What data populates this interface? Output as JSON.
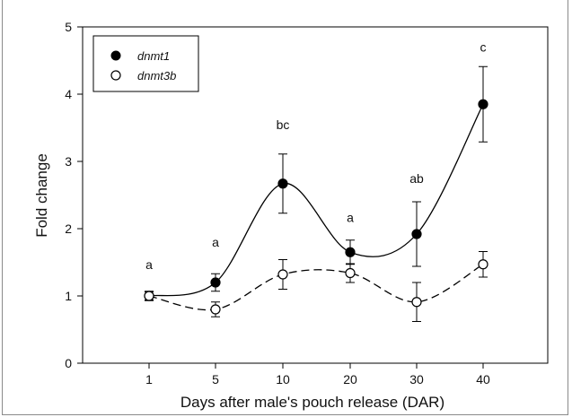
{
  "chart_data": {
    "type": "line",
    "title": "",
    "xlabel": "Days after male's pouch release (DAR)",
    "ylabel": "Fold change",
    "categories": [
      "1",
      "5",
      "10",
      "20",
      "30",
      "40"
    ],
    "ylim": [
      0,
      5
    ],
    "yticks": [
      "0",
      "1",
      "2",
      "3",
      "4",
      "5"
    ],
    "grid": false,
    "legend_position": "top-left",
    "series": [
      {
        "name": "dnmt1",
        "marker": "filled-circle",
        "line_style": "solid",
        "color": "#000000",
        "values": [
          1.0,
          1.2,
          2.67,
          1.65,
          1.92,
          3.85
        ],
        "error": [
          0.07,
          0.13,
          0.44,
          0.18,
          0.48,
          0.56
        ]
      },
      {
        "name": "dnmt3b",
        "marker": "open-circle",
        "line_style": "dashed",
        "color": "#000000",
        "values": [
          1.0,
          0.8,
          1.32,
          1.34,
          0.91,
          1.47
        ],
        "error": [
          0.06,
          0.11,
          0.22,
          0.14,
          0.29,
          0.19
        ]
      }
    ],
    "annotations": [
      "a",
      "a",
      "bc",
      "a",
      "ab",
      "c"
    ],
    "annotation_values": [
      1.47,
      1.8,
      3.55,
      2.17,
      2.75,
      4.7
    ]
  }
}
